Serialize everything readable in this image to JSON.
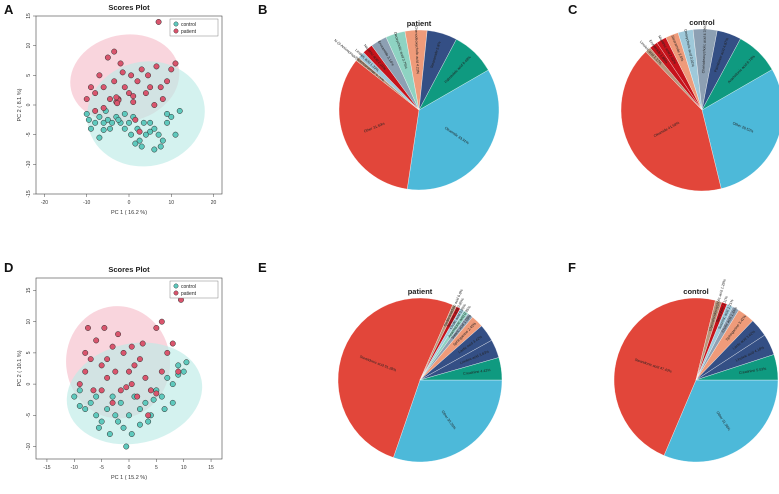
{
  "panel_letters": [
    "A",
    "B",
    "C",
    "D",
    "E",
    "F"
  ],
  "colors": {
    "control": "#5ec9bd",
    "patient": "#d9556d",
    "control_ellipse": "#bdebe7",
    "patient_ellipse": "#f6bfcb",
    "pie_blue": "#4db9d9",
    "pie_red": "#e2463a",
    "pie_teal": "#0f9a80",
    "pie_navy": "#344f85",
    "pie_salmon": "#ef9b7a",
    "pie_lightblue": "#9fc9da",
    "pie_gray": "#8da0b3",
    "pie_darkred": "#c6131b",
    "pie_tan": "#b8977d",
    "pie_mint": "#8ed3c2"
  },
  "chart_data": [
    {
      "type": "scatter",
      "title": "Scores Plot",
      "xlabel": "PC 1 ( 16.2 %)",
      "ylabel": "PC 2 ( 8.1 %)",
      "xlim": [
        -22,
        22
      ],
      "ylim": [
        -15,
        15
      ],
      "xticks": [
        -20,
        -10,
        0,
        10,
        20
      ],
      "yticks": [
        -15,
        -10,
        -5,
        0,
        5,
        10,
        15
      ],
      "ytick_labels": [
        "-15",
        "-10",
        "-5",
        "0",
        "5",
        "10",
        "15"
      ],
      "legend": [
        "control",
        "patient"
      ],
      "ellipses": [
        {
          "group": "patient",
          "center": [
            -1,
            4.5
          ],
          "radii": [
            13,
            7.3
          ],
          "angle_deg": 12
        },
        {
          "group": "control",
          "center": [
            4,
            -1.5
          ],
          "radii": [
            14,
            8.8
          ],
          "angle_deg": 12
        }
      ],
      "series": [
        {
          "name": "control",
          "points": [
            [
              -10,
              -1.5
            ],
            [
              -9.5,
              -2.5
            ],
            [
              -8,
              -3
            ],
            [
              -7,
              -2
            ],
            [
              -6,
              -3
            ],
            [
              -5,
              -2.5
            ],
            [
              -4.5,
              -4
            ],
            [
              -3,
              -2
            ],
            [
              -2,
              -3
            ],
            [
              -1,
              -4
            ],
            [
              0,
              -3
            ],
            [
              1,
              -2
            ],
            [
              2,
              -4
            ],
            [
              2.5,
              -6
            ],
            [
              3,
              -7
            ],
            [
              4,
              -5
            ],
            [
              5,
              -3
            ],
            [
              6,
              -4
            ],
            [
              7,
              -5
            ],
            [
              8,
              -6
            ],
            [
              9,
              -3
            ],
            [
              10,
              -2
            ],
            [
              11,
              -5
            ],
            [
              12,
              -1
            ],
            [
              -9,
              -4
            ],
            [
              -7,
              -5.5
            ],
            [
              -5.5,
              -1
            ],
            [
              -4,
              -3
            ],
            [
              -2.5,
              -2.5
            ],
            [
              1.5,
              -6.5
            ],
            [
              6,
              -7.5
            ],
            [
              7.5,
              -7
            ],
            [
              9,
              -1.5
            ],
            [
              3.5,
              -3
            ],
            [
              5,
              -4.5
            ],
            [
              -1,
              -1.5
            ],
            [
              0.5,
              -5
            ],
            [
              -6,
              -4.2
            ]
          ]
        },
        {
          "name": "patient",
          "points": [
            [
              -10,
              1
            ],
            [
              -9,
              3
            ],
            [
              -8,
              2
            ],
            [
              -7,
              5
            ],
            [
              -6,
              3
            ],
            [
              -5,
              8
            ],
            [
              -4.5,
              1
            ],
            [
              -3.5,
              4
            ],
            [
              -3,
              0.5
            ],
            [
              -2.5,
              1
            ],
            [
              -2,
              7
            ],
            [
              -1,
              3
            ],
            [
              0,
              2
            ],
            [
              0.5,
              5
            ],
            [
              1,
              1.5
            ],
            [
              2,
              4
            ],
            [
              2.5,
              -4.5
            ],
            [
              3,
              6
            ],
            [
              4,
              2
            ],
            [
              5,
              3
            ],
            [
              6,
              0
            ],
            [
              7,
              14
            ],
            [
              8,
              1
            ],
            [
              9,
              4
            ],
            [
              10,
              6
            ],
            [
              11,
              7
            ],
            [
              -6,
              -0.5
            ],
            [
              -3.5,
              9
            ],
            [
              -1.5,
              5.5
            ],
            [
              -2.5,
              0.8
            ],
            [
              -3,
              1.3
            ],
            [
              -2.8,
              0.3
            ],
            [
              1,
              0.5
            ],
            [
              4.5,
              5
            ],
            [
              6.5,
              6.5
            ],
            [
              -8,
              -1
            ],
            [
              1.5,
              -2.5
            ],
            [
              7.5,
              3
            ]
          ]
        }
      ]
    },
    {
      "type": "pie",
      "title": "patient",
      "start_angle_deg": 30,
      "slices": [
        {
          "label": "Oleamide 33.91%",
          "value": 33.91,
          "color": "pie_blue",
          "label_r": 0.57
        },
        {
          "label": "Other 31.59%",
          "value": 31.59,
          "color": "pie_red",
          "label_r": 0.6
        },
        {
          "label": "N-(3-Aminopropyl)docosanamide 0.76%",
          "value": 0.76,
          "color": "pie_tan",
          "label_r": 0.97
        },
        {
          "label": "Linoleic acid 1.33%",
          "value": 1.33,
          "color": "pie_lightblue",
          "label_r": 0.9
        },
        {
          "label": "Nicotinic acid 2.01%",
          "value": 2.01,
          "color": "pie_darkred",
          "label_r": 0.86
        },
        {
          "label": "Erucamide 3.14%",
          "value": 3.14,
          "color": "pie_gray",
          "label_r": 0.82
        },
        {
          "label": "Deoxycholic acid 3.75%",
          "value": 3.75,
          "color": "pie_mint",
          "label_r": 0.78
        },
        {
          "label": "Chenodeoxycholic acid 4.23%",
          "value": 4.23,
          "color": "pie_salmon",
          "label_r": 0.75
        },
        {
          "label": "Stearamide 5.8%",
          "value": 5.8,
          "color": "pie_navy",
          "label_r": 0.72
        },
        {
          "label": "Palmitoleic acid 8.48%",
          "value": 8.48,
          "color": "pie_teal",
          "label_r": 0.7
        }
      ]
    },
    {
      "type": "pie",
      "title": "control",
      "start_angle_deg": 30,
      "slices": [
        {
          "label": "Other 29.52%",
          "value": 29.52,
          "color": "pie_blue",
          "label_r": 0.55
        },
        {
          "label": "Oleamide 41.59%",
          "value": 41.59,
          "color": "pie_red",
          "label_r": 0.5
        },
        {
          "label": "Linoleic acid 1.17%",
          "value": 1.17,
          "color": "pie_tan",
          "label_r": 0.95
        },
        {
          "label": "Erucamide 1.66%",
          "value": 1.66,
          "color": "pie_darkred",
          "label_r": 0.9
        },
        {
          "label": "Nicotinic acid 2.02%",
          "value": 2.02,
          "color": "pie_darkred",
          "label_r": 0.86
        },
        {
          "label": "Stearamide 2.6%",
          "value": 2.6,
          "color": "pie_salmon",
          "label_r": 0.82
        },
        {
          "label": "Deoxycholic acid 3.01%",
          "value": 3.01,
          "color": "pie_lightblue",
          "label_r": 0.78
        },
        {
          "label": "Chenodeoxycholic acid 4.78%",
          "value": 4.78,
          "color": "pie_gray",
          "label_r": 0.75
        },
        {
          "label": "Palmitoleic acid 4.87%",
          "value": 4.87,
          "color": "pie_navy",
          "label_r": 0.72
        },
        {
          "label": "Arachidonic acid 8.78%",
          "value": 8.78,
          "color": "pie_teal",
          "label_r": 0.7
        }
      ]
    },
    {
      "type": "scatter",
      "title": "Scores Plot",
      "xlabel": "PC 1 ( 15.2 %)",
      "ylabel": "PC 2 ( 10.1 %)",
      "xlim": [
        -17,
        17
      ],
      "ylim": [
        -12,
        17
      ],
      "xticks": [
        -15,
        -10,
        -5,
        0,
        5,
        10,
        15
      ],
      "yticks": [
        -10,
        -5,
        0,
        5,
        10,
        15
      ],
      "ytick_labels": [
        "-10",
        "-5",
        "0",
        "5",
        "10",
        "15"
      ],
      "legend": [
        "control",
        "patient"
      ],
      "ellipses": [
        {
          "group": "patient",
          "center": [
            -2,
            3.5
          ],
          "radii": [
            9.5,
            9
          ],
          "angle_deg": 5
        },
        {
          "group": "control",
          "center": [
            1,
            -1.5
          ],
          "radii": [
            12.5,
            8
          ],
          "angle_deg": 12
        }
      ],
      "series": [
        {
          "name": "control",
          "points": [
            [
              -10,
              -2
            ],
            [
              -9,
              -1
            ],
            [
              -8,
              -4
            ],
            [
              -7,
              -3
            ],
            [
              -6,
              -2
            ],
            [
              -5,
              -6
            ],
            [
              -4,
              -4
            ],
            [
              -3.5,
              -8
            ],
            [
              -3,
              -2
            ],
            [
              -2,
              -6
            ],
            [
              -1,
              -7
            ],
            [
              -0.5,
              -10
            ],
            [
              0,
              -5
            ],
            [
              1,
              -2
            ],
            [
              2,
              -4
            ],
            [
              3,
              -3
            ],
            [
              4,
              -5
            ],
            [
              5,
              -1
            ],
            [
              6,
              -2
            ],
            [
              7,
              1
            ],
            [
              8,
              -3
            ],
            [
              9,
              3
            ],
            [
              10,
              2
            ],
            [
              -5.5,
              -7
            ],
            [
              -2.5,
              -5
            ],
            [
              -1.5,
              -3
            ],
            [
              0.5,
              -8
            ],
            [
              3.5,
              -6
            ],
            [
              6.5,
              -4
            ],
            [
              8,
              0
            ],
            [
              9,
              1.5
            ],
            [
              10.5,
              3.5
            ],
            [
              -9,
              -3.5
            ],
            [
              -6,
              -5
            ],
            [
              2,
              -6.5
            ],
            [
              4.5,
              -2.5
            ]
          ]
        },
        {
          "name": "patient",
          "points": [
            [
              -9,
              0
            ],
            [
              -8,
              5
            ],
            [
              -7,
              4
            ],
            [
              -6,
              7
            ],
            [
              -5,
              3
            ],
            [
              -4.5,
              9
            ],
            [
              -4,
              4
            ],
            [
              -3,
              6
            ],
            [
              -2,
              8
            ],
            [
              -1,
              5
            ],
            [
              0,
              2
            ],
            [
              0.5,
              6
            ],
            [
              1,
              3
            ],
            [
              2,
              4
            ],
            [
              3,
              1
            ],
            [
              4,
              -1
            ],
            [
              5,
              9
            ],
            [
              6,
              2
            ],
            [
              7,
              5
            ],
            [
              9,
              2
            ],
            [
              9.5,
              13.5
            ],
            [
              -6.5,
              -1
            ],
            [
              -4,
              1
            ],
            [
              -3,
              -3
            ],
            [
              -1.5,
              -1
            ],
            [
              -0.5,
              -0.5
            ],
            [
              1.5,
              -2
            ],
            [
              3.5,
              -5
            ],
            [
              5,
              -1.5
            ],
            [
              -7.5,
              9
            ],
            [
              -2.5,
              2
            ],
            [
              0.5,
              0
            ],
            [
              2.5,
              6.5
            ],
            [
              6,
              10
            ],
            [
              -5,
              -1
            ],
            [
              8,
              6.5
            ],
            [
              -8,
              2
            ]
          ]
        }
      ]
    },
    {
      "type": "pie",
      "title": "patient",
      "start_angle_deg": 0,
      "slices": [
        {
          "label": "Other 30.26%",
          "value": 30.26,
          "color": "pie_blue",
          "label_r": 0.6
        },
        {
          "label": "Stearidonic acid 51.28%",
          "value": 51.28,
          "color": "pie_red",
          "label_r": 0.55
        },
        {
          "label": "Dodecanedioic acid 0.8%",
          "value": 0.8,
          "color": "pie_tan",
          "label_r": 0.97
        },
        {
          "label": "Succinic acid 0.85%",
          "value": 0.85,
          "color": "pie_darkred",
          "label_r": 0.93
        },
        {
          "label": "Cholic acid 0.85%",
          "value": 0.85,
          "color": "pie_lightblue",
          "label_r": 0.9
        },
        {
          "label": "Arachidonic acid 0.95%",
          "value": 0.95,
          "color": "pie_mint",
          "label_r": 0.86
        },
        {
          "label": "Stearic acid 1.09%",
          "value": 1.09,
          "color": "pie_gray",
          "label_r": 0.82
        },
        {
          "label": "Sphinganine 2.45%",
          "value": 2.45,
          "color": "pie_salmon",
          "label_r": 0.78
        },
        {
          "label": "Lactic acid 3.42%",
          "value": 3.42,
          "color": "pie_navy",
          "label_r": 0.75
        },
        {
          "label": "Linoleic acid 3.63%",
          "value": 3.63,
          "color": "pie_navy",
          "label_r": 0.72
        },
        {
          "label": "Creatinine 4.42%",
          "value": 4.42,
          "color": "pie_teal",
          "label_r": 0.7
        }
      ]
    },
    {
      "type": "pie",
      "title": "control",
      "start_angle_deg": 0,
      "slices": [
        {
          "label": "Other 31.38%",
          "value": 31.38,
          "color": "pie_blue",
          "label_r": 0.6
        },
        {
          "label": "Stearidonic acid 47.43%",
          "value": 47.43,
          "color": "pie_red",
          "label_r": 0.55
        },
        {
          "label": "Glycoursodeoxycholic acid 1.28%",
          "value": 1.28,
          "color": "pie_tan",
          "label_r": 0.95
        },
        {
          "label": "Stercobilin 1.11%",
          "value": 1.11,
          "color": "pie_darkred",
          "label_r": 0.92
        },
        {
          "label": "Succinic acid 1.21%",
          "value": 1.21,
          "color": "pie_lightblue",
          "label_r": 0.88
        },
        {
          "label": "Cholic acid 1.34%",
          "value": 1.34,
          "color": "pie_gray",
          "label_r": 0.84
        },
        {
          "label": "Sphinganine 3.42%",
          "value": 3.42,
          "color": "pie_salmon",
          "label_r": 0.8
        },
        {
          "label": "Lactic acid 3.62%",
          "value": 3.62,
          "color": "pie_navy",
          "label_r": 0.76
        },
        {
          "label": "Linoleic acid 4.18%",
          "value": 4.18,
          "color": "pie_navy",
          "label_r": 0.73
        },
        {
          "label": "Creatinine 5.03%",
          "value": 5.03,
          "color": "pie_teal",
          "label_r": 0.7
        }
      ]
    }
  ]
}
